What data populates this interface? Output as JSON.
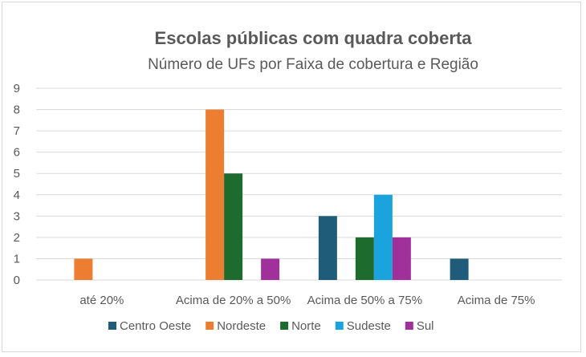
{
  "chart_data": {
    "type": "bar",
    "title": "Escolas públicas com quadra coberta",
    "subtitle": "Número de UFs por Faixa de cobertura e Região",
    "categories": [
      "até 20%",
      "Acima de 20% a 50%",
      "Acima de 50% a 75%",
      "Acima de 75%"
    ],
    "series": [
      {
        "name": "Centro Oeste",
        "color": "#1f5c7a",
        "values": [
          0,
          0,
          3,
          1
        ]
      },
      {
        "name": "Nordeste",
        "color": "#ed7d31",
        "values": [
          1,
          8,
          0,
          0
        ]
      },
      {
        "name": "Norte",
        "color": "#1e6b2e",
        "values": [
          0,
          5,
          2,
          0
        ]
      },
      {
        "name": "Sudeste",
        "color": "#1aa3dc",
        "values": [
          0,
          0,
          4,
          0
        ]
      },
      {
        "name": "Sul",
        "color": "#a0309a",
        "values": [
          0,
          1,
          2,
          0
        ]
      }
    ],
    "ylim": [
      0,
      9
    ],
    "yticks": [
      0,
      1,
      2,
      3,
      4,
      5,
      6,
      7,
      8,
      9
    ],
    "grid": true,
    "legend": "bottom"
  }
}
